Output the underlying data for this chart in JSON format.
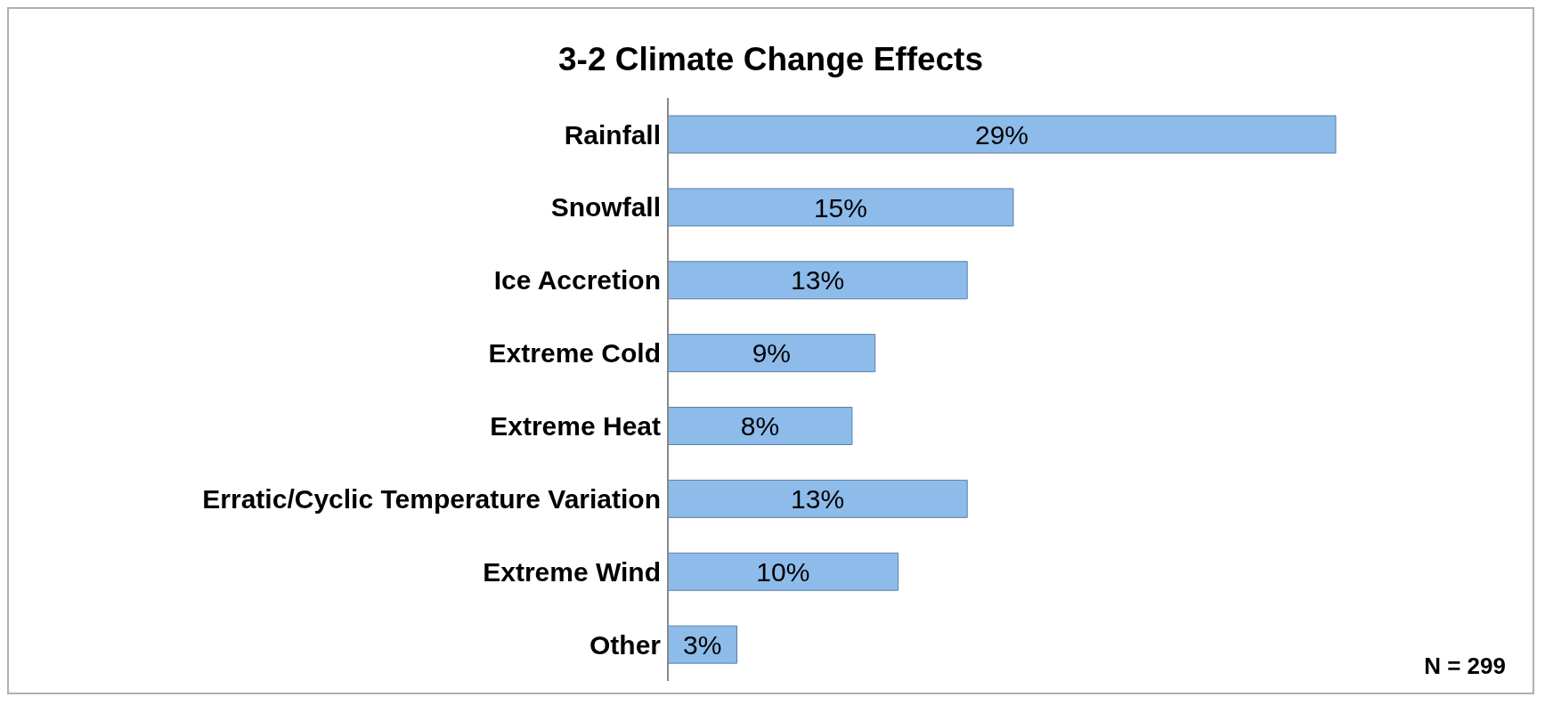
{
  "chart_data": {
    "type": "bar",
    "orientation": "horizontal",
    "title": "3-2 Climate Change Effects",
    "categories": [
      "Rainfall",
      "Snowfall",
      "Ice Accretion",
      "Extreme Cold",
      "Extreme Heat",
      "Erratic/Cyclic Temperature Variation",
      "Extreme Wind",
      "Other"
    ],
    "values": [
      29,
      15,
      13,
      9,
      8,
      13,
      10,
      3
    ],
    "value_labels": [
      "29%",
      "15%",
      "13%",
      "9%",
      "8%",
      "13%",
      "10%",
      "3%"
    ],
    "color": "#8dbbea",
    "annotations": [
      "N = 299"
    ]
  }
}
